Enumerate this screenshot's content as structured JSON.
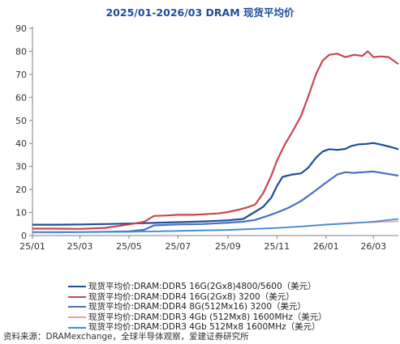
{
  "chart_data": {
    "type": "line",
    "title": "2025/01-2026/03 DRAM 现货平均价",
    "xlabel": "",
    "ylabel": "",
    "x_ticks": [
      "25/01",
      "25/03",
      "25/05",
      "25/07",
      "25/09",
      "25/11",
      "26/01",
      "26/03"
    ],
    "y_ticks": [
      0,
      10,
      20,
      30,
      40,
      50,
      60,
      70,
      80,
      90
    ],
    "xlim": [
      "25/01",
      "26/04"
    ],
    "ylim": [
      0,
      90
    ],
    "grid": false,
    "legend_position": "bottom",
    "series": [
      {
        "name": "现货平均价:DRAM:DDR5 16G(2Gx8)4800/5600（美元）",
        "color": "#1f4e9a",
        "points": [
          [
            "2025-01-01",
            4.7
          ],
          [
            "2025-02-01",
            4.7
          ],
          [
            "2025-03-01",
            4.8
          ],
          [
            "2025-04-01",
            5.0
          ],
          [
            "2025-05-01",
            5.2
          ],
          [
            "2025-06-01",
            5.5
          ],
          [
            "2025-07-01",
            5.8
          ],
          [
            "2025-08-01",
            6.1
          ],
          [
            "2025-09-01",
            6.6
          ],
          [
            "2025-09-20",
            7.2
          ],
          [
            "2025-10-01",
            9.5
          ],
          [
            "2025-10-15",
            12.5
          ],
          [
            "2025-10-25",
            16.5
          ],
          [
            "2025-11-01",
            21.5
          ],
          [
            "2025-11-08",
            25.5
          ],
          [
            "2025-11-20",
            26.5
          ],
          [
            "2025-12-01",
            27.0
          ],
          [
            "2025-12-10",
            29.5
          ],
          [
            "2025-12-20",
            34.0
          ],
          [
            "2025-12-28",
            36.5
          ],
          [
            "2026-01-05",
            37.5
          ],
          [
            "2026-01-15",
            37.2
          ],
          [
            "2026-01-25",
            37.6
          ],
          [
            "2026-02-01",
            38.8
          ],
          [
            "2026-02-10",
            39.6
          ],
          [
            "2026-02-20",
            39.8
          ],
          [
            "2026-03-01",
            40.2
          ],
          [
            "2026-03-10",
            39.5
          ],
          [
            "2026-03-22",
            38.5
          ],
          [
            "2026-04-01",
            37.5
          ]
        ]
      },
      {
        "name": "现货平均价:DRAM:DDR4 16G(2Gx8) 3200（美元）",
        "color": "#c9474d",
        "points": [
          [
            "2025-01-01",
            3.0
          ],
          [
            "2025-02-01",
            3.0
          ],
          [
            "2025-03-01",
            2.9
          ],
          [
            "2025-04-01",
            3.3
          ],
          [
            "2025-05-01",
            4.8
          ],
          [
            "2025-05-20",
            6.0
          ],
          [
            "2025-06-01",
            8.5
          ],
          [
            "2025-06-15",
            8.7
          ],
          [
            "2025-07-01",
            9.0
          ],
          [
            "2025-07-20",
            9.0
          ],
          [
            "2025-08-01",
            9.2
          ],
          [
            "2025-08-20",
            9.6
          ],
          [
            "2025-09-01",
            10.2
          ],
          [
            "2025-09-15",
            11.3
          ],
          [
            "2025-09-25",
            12.2
          ],
          [
            "2025-10-05",
            13.5
          ],
          [
            "2025-10-15",
            18.5
          ],
          [
            "2025-10-25",
            26.0
          ],
          [
            "2025-11-01",
            32.5
          ],
          [
            "2025-11-10",
            39.0
          ],
          [
            "2025-11-20",
            45.0
          ],
          [
            "2025-12-01",
            52.0
          ],
          [
            "2025-12-10",
            60.5
          ],
          [
            "2025-12-20",
            70.5
          ],
          [
            "2025-12-28",
            76.0
          ],
          [
            "2026-01-05",
            78.5
          ],
          [
            "2026-01-15",
            79.0
          ],
          [
            "2026-01-25",
            77.5
          ],
          [
            "2026-02-05",
            78.5
          ],
          [
            "2026-02-15",
            78.0
          ],
          [
            "2026-02-22",
            80.0
          ],
          [
            "2026-03-01",
            77.5
          ],
          [
            "2026-03-10",
            77.8
          ],
          [
            "2026-03-20",
            77.5
          ],
          [
            "2026-04-01",
            74.5
          ]
        ]
      },
      {
        "name": "现货平均价:DRAM:DDR4 8G(512Mx16) 3200（美元）",
        "color": "#4a6fc1",
        "points": [
          [
            "2025-01-01",
            1.4
          ],
          [
            "2025-02-01",
            1.4
          ],
          [
            "2025-03-01",
            1.5
          ],
          [
            "2025-04-01",
            1.6
          ],
          [
            "2025-05-01",
            1.8
          ],
          [
            "2025-05-20",
            2.5
          ],
          [
            "2025-06-01",
            4.4
          ],
          [
            "2025-07-01",
            4.8
          ],
          [
            "2025-08-01",
            5.0
          ],
          [
            "2025-09-01",
            5.6
          ],
          [
            "2025-09-20",
            6.0
          ],
          [
            "2025-10-05",
            6.8
          ],
          [
            "2025-10-20",
            8.5
          ],
          [
            "2025-11-01",
            10.0
          ],
          [
            "2025-11-15",
            12.0
          ],
          [
            "2025-12-01",
            15.0
          ],
          [
            "2025-12-15",
            18.5
          ],
          [
            "2026-01-01",
            23.0
          ],
          [
            "2026-01-15",
            26.5
          ],
          [
            "2026-01-25",
            27.5
          ],
          [
            "2026-02-05",
            27.2
          ],
          [
            "2026-02-15",
            27.5
          ],
          [
            "2026-03-01",
            27.8
          ],
          [
            "2026-03-15",
            27.0
          ],
          [
            "2026-04-01",
            26.0
          ]
        ]
      },
      {
        "name": "现货平均价:DRAM:DDR3 4Gb (512Mx8) 1600MHz（美元）",
        "color": "#e8a49a",
        "points": [
          [
            "2025-01-01",
            1.4
          ],
          [
            "2025-03-01",
            1.5
          ],
          [
            "2025-05-01",
            1.6
          ],
          [
            "2025-06-01",
            1.8
          ],
          [
            "2025-07-01",
            2.0
          ],
          [
            "2025-08-01",
            2.3
          ],
          [
            "2025-09-01",
            2.5
          ],
          [
            "2025-10-01",
            2.9
          ],
          [
            "2025-11-01",
            3.3
          ],
          [
            "2025-12-01",
            4.0
          ],
          [
            "2026-01-01",
            4.8
          ],
          [
            "2026-02-01",
            5.5
          ],
          [
            "2026-03-01",
            5.8
          ],
          [
            "2026-04-01",
            6.2
          ]
        ]
      },
      {
        "name": "现货平均价:DRAM:DDR3 4Gb 512Mx8 1600MHz（美元）",
        "color": "#3b8fd9",
        "points": [
          [
            "2025-01-01",
            1.5
          ],
          [
            "2025-03-01",
            1.5
          ],
          [
            "2025-05-01",
            1.6
          ],
          [
            "2025-06-01",
            1.8
          ],
          [
            "2025-07-01",
            2.0
          ],
          [
            "2025-08-01",
            2.2
          ],
          [
            "2025-09-01",
            2.4
          ],
          [
            "2025-10-01",
            2.8
          ],
          [
            "2025-11-01",
            3.3
          ],
          [
            "2025-12-01",
            3.9
          ],
          [
            "2026-01-01",
            4.7
          ],
          [
            "2026-02-01",
            5.3
          ],
          [
            "2026-03-01",
            6.0
          ],
          [
            "2026-04-01",
            7.2
          ]
        ]
      }
    ]
  },
  "source": "资料来源：DRAMexchange，全球半导体观察，爱建证券研究所"
}
